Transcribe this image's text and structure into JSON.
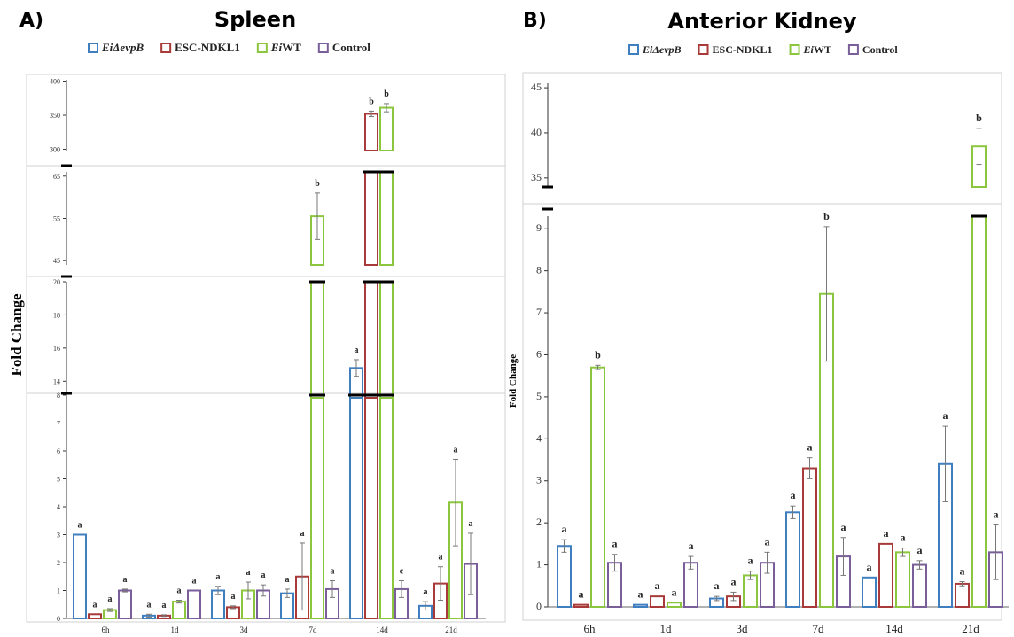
{
  "legend": [
    {
      "italic": "EiΔevpB",
      "plain": "",
      "color": "#3f7fbf"
    },
    {
      "italic": "",
      "plain": "ESC-NDKL1",
      "color": "#a83a3a"
    },
    {
      "italic": "Ei",
      "plain": "WT",
      "color": "#8cc63e"
    },
    {
      "italic": "",
      "plain": "Control",
      "color": "#7a5e9a"
    }
  ],
  "chart_data": [
    {
      "type": "bar",
      "panel_label": "A)",
      "title": "Spleen",
      "ylabel": "Fold Change",
      "categories": [
        "6h",
        "1d",
        "3d",
        "7d",
        "14d",
        "21d"
      ],
      "broken_axis_segments": [
        {
          "ylim": [
            0,
            8
          ],
          "ticks": [
            0,
            1,
            2,
            3,
            4,
            5,
            6,
            7,
            8
          ]
        },
        {
          "ylim": [
            13,
            20
          ],
          "ticks": [
            14,
            16,
            18,
            20
          ]
        },
        {
          "ylim": [
            44,
            66
          ],
          "ticks": [
            45,
            55,
            65
          ]
        },
        {
          "ylim": [
            298,
            402
          ],
          "ticks": [
            300,
            350,
            400
          ]
        }
      ],
      "series": [
        {
          "name": "EiΔevpB",
          "values": [
            3.0,
            0.1,
            1.0,
            0.9,
            14.8,
            0.45
          ],
          "errors": [
            0,
            0.05,
            0.15,
            0.15,
            0.5,
            0.15
          ],
          "letters": [
            "a",
            "a",
            "a",
            "a",
            "a",
            "a"
          ]
        },
        {
          "name": "ESC-NDKL1",
          "values": [
            0.15,
            0.1,
            0.4,
            1.5,
            352,
            1.25
          ],
          "errors": [
            0,
            0.03,
            0.05,
            1.2,
            4,
            0.6
          ],
          "letters": [
            "a",
            "a",
            "a",
            "a",
            "b",
            "a"
          ]
        },
        {
          "name": "EiWT",
          "values": [
            0.3,
            0.6,
            1.0,
            55.5,
            361,
            4.15
          ],
          "errors": [
            0.05,
            0.05,
            0.3,
            5.5,
            6,
            1.55
          ],
          "letters": [
            "a",
            "a",
            "a",
            "b",
            "b",
            "a"
          ]
        },
        {
          "name": "Control",
          "values": [
            1.0,
            1.0,
            1.0,
            1.05,
            1.05,
            1.95
          ],
          "errors": [
            0.05,
            0,
            0.2,
            0.3,
            0.3,
            1.1
          ],
          "letters": [
            "a",
            "a",
            "a",
            "a",
            "c",
            "a"
          ]
        }
      ]
    },
    {
      "type": "bar",
      "panel_label": "B)",
      "title": "Anterior Kidney",
      "ylabel": "Fold Change",
      "categories": [
        "6h",
        "1d",
        "3d",
        "7d",
        "14d",
        "21d"
      ],
      "broken_axis_segments": [
        {
          "ylim": [
            0,
            9.3
          ],
          "ticks": [
            0,
            1,
            2,
            3,
            4,
            5,
            6,
            7,
            8,
            9
          ]
        },
        {
          "ylim": [
            34,
            45.5
          ],
          "ticks": [
            35,
            40,
            45
          ]
        }
      ],
      "series": [
        {
          "name": "EiΔevpB",
          "values": [
            1.45,
            0.05,
            0.2,
            2.25,
            0.7,
            3.4
          ],
          "errors": [
            0.15,
            0,
            0.05,
            0.15,
            0,
            0.9
          ],
          "letters": [
            "a",
            "a",
            "a",
            "a",
            "a",
            "a"
          ]
        },
        {
          "name": "ESC-NDKL1",
          "values": [
            0.05,
            0.25,
            0.25,
            3.3,
            1.5,
            0.55
          ],
          "errors": [
            0,
            0,
            0.1,
            0.25,
            0,
            0.05
          ],
          "letters": [
            "a",
            "a",
            "a",
            "a",
            "a",
            "a"
          ]
        },
        {
          "name": "EiWT",
          "values": [
            5.7,
            0.1,
            0.75,
            7.45,
            1.3,
            38.5
          ],
          "errors": [
            0.05,
            0,
            0.1,
            1.6,
            0.1,
            2.0
          ],
          "letters": [
            "b",
            "a",
            "a",
            "b",
            "a",
            "b"
          ]
        },
        {
          "name": "Control",
          "values": [
            1.05,
            1.05,
            1.05,
            1.2,
            1.0,
            1.3
          ],
          "errors": [
            0.2,
            0.15,
            0.25,
            0.45,
            0.1,
            0.65
          ],
          "letters": [
            "a",
            "a",
            "a",
            "a",
            "a",
            "a"
          ]
        }
      ]
    }
  ]
}
